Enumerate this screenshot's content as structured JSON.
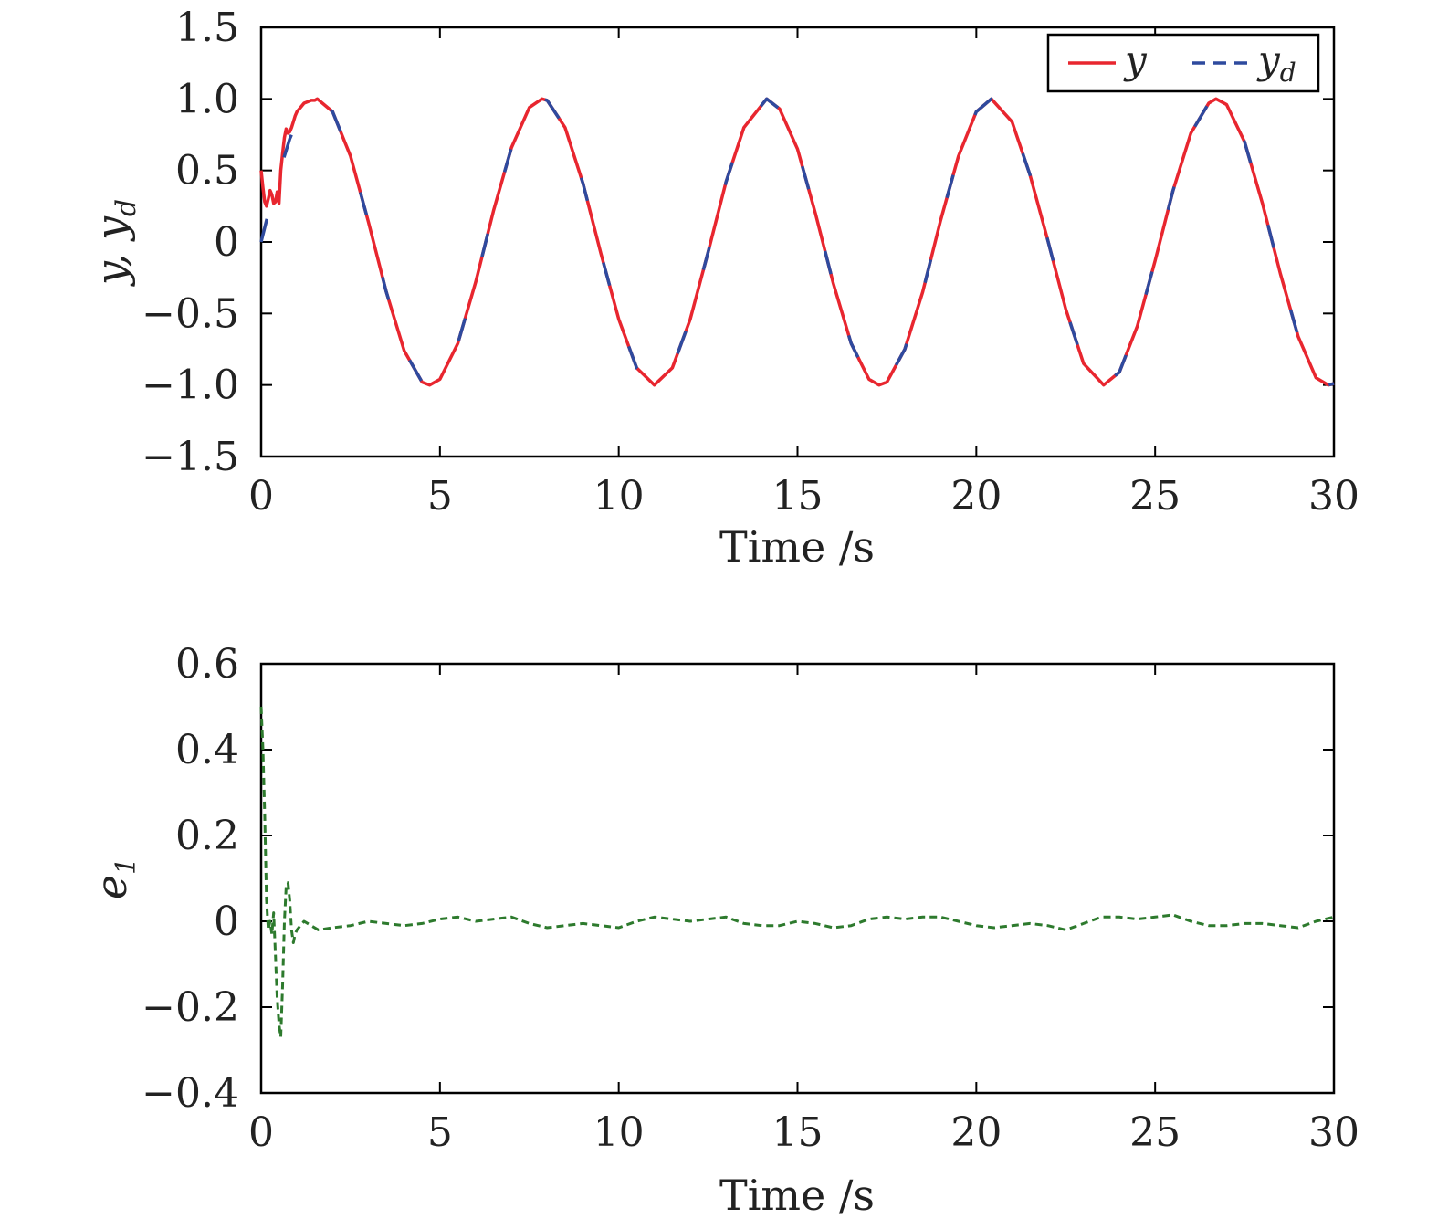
{
  "chart_data": [
    {
      "type": "line",
      "xlabel": "Time /s",
      "ylabel": {
        "main": "y, y",
        "sub": "d"
      },
      "xlim": [
        0,
        30
      ],
      "ylim": [
        -1.5,
        1.5
      ],
      "xticks": [
        "0",
        "5",
        "10",
        "15",
        "20",
        "25",
        "30"
      ],
      "yticks": [
        "1.5",
        "1.0",
        "0.5",
        "0",
        "−0.5",
        "−1.0",
        "−1.5"
      ],
      "grid": false,
      "legend_position": "top-right",
      "series": [
        {
          "name": "y",
          "color": "#e8262f",
          "style": "solid",
          "x": [
            0.0,
            0.05,
            0.1,
            0.15,
            0.2,
            0.25,
            0.3,
            0.35,
            0.4,
            0.45,
            0.5,
            0.55,
            0.6,
            0.65,
            0.7,
            0.75,
            0.8,
            0.85,
            0.9,
            0.95,
            1.0,
            1.1,
            1.2,
            1.3,
            1.4,
            1.5,
            1.571,
            2.0,
            2.5,
            3.0,
            3.5,
            4.0,
            4.5,
            4.712,
            5.0,
            5.5,
            6.0,
            6.5,
            7.0,
            7.5,
            7.854,
            8.0,
            8.5,
            9.0,
            9.5,
            10.0,
            10.5,
            10.996,
            11.5,
            12.0,
            12.5,
            13.0,
            13.5,
            14.137,
            14.5,
            15.0,
            15.5,
            16.0,
            16.5,
            17.0,
            17.279,
            17.5,
            18.0,
            18.5,
            19.0,
            19.5,
            20.0,
            20.42,
            21.0,
            21.5,
            22.0,
            22.5,
            23.0,
            23.562,
            24.0,
            24.5,
            25.0,
            25.5,
            26.0,
            26.5,
            26.704,
            27.0,
            27.5,
            28.0,
            28.5,
            29.0,
            29.5,
            29.845,
            30.0
          ],
          "y": [
            0.5,
            0.38,
            0.28,
            0.25,
            0.3,
            0.36,
            0.33,
            0.27,
            0.28,
            0.35,
            0.27,
            0.5,
            0.62,
            0.73,
            0.79,
            0.76,
            0.77,
            0.8,
            0.84,
            0.88,
            0.91,
            0.94,
            0.97,
            0.98,
            0.99,
            0.99,
            1.0,
            0.91,
            0.6,
            0.14,
            -0.35,
            -0.76,
            -0.98,
            -1.0,
            -0.96,
            -0.71,
            -0.28,
            0.22,
            0.66,
            0.94,
            1.0,
            0.99,
            0.8,
            0.41,
            -0.08,
            -0.54,
            -0.88,
            -1.0,
            -0.88,
            -0.54,
            -0.07,
            0.42,
            0.8,
            1.0,
            0.93,
            0.65,
            0.2,
            -0.29,
            -0.71,
            -0.96,
            -1.0,
            -0.98,
            -0.75,
            -0.35,
            0.15,
            0.6,
            0.91,
            1.0,
            0.84,
            0.47,
            0.01,
            -0.47,
            -0.85,
            -1.0,
            -0.91,
            -0.59,
            -0.13,
            0.36,
            0.76,
            0.97,
            1.0,
            0.96,
            0.7,
            0.27,
            -0.22,
            -0.66,
            -0.95,
            -1.0,
            -0.99
          ]
        },
        {
          "name": "y",
          "name_sub": "d",
          "color": "#2e4a9e",
          "style": "dashed",
          "x": [
            0.0,
            0.2,
            0.4,
            0.6,
            0.8,
            1.0,
            1.2,
            1.4,
            1.571,
            2.0,
            2.5,
            3.0,
            3.5,
            4.0,
            4.5,
            4.712,
            5.0,
            5.5,
            6.0,
            6.5,
            7.0,
            7.5,
            7.854,
            8.0,
            8.5,
            9.0,
            9.5,
            10.0,
            10.5,
            10.996,
            11.5,
            12.0,
            12.5,
            13.0,
            13.5,
            14.137,
            14.5,
            15.0,
            15.5,
            16.0,
            16.5,
            17.0,
            17.279,
            17.5,
            18.0,
            18.5,
            19.0,
            19.5,
            20.0,
            20.42,
            21.0,
            21.5,
            22.0,
            22.5,
            23.0,
            23.562,
            24.0,
            24.5,
            25.0,
            25.5,
            26.0,
            26.5,
            26.704,
            27.0,
            27.5,
            28.0,
            28.5,
            29.0,
            29.5,
            29.845,
            30.0
          ],
          "y": [
            0.0,
            0.2,
            0.39,
            0.56,
            0.72,
            0.84,
            0.93,
            0.99,
            1.0,
            0.91,
            0.6,
            0.14,
            -0.35,
            -0.76,
            -0.98,
            -1.0,
            -0.96,
            -0.71,
            -0.28,
            0.22,
            0.66,
            0.94,
            1.0,
            0.99,
            0.8,
            0.41,
            -0.08,
            -0.54,
            -0.88,
            -1.0,
            -0.88,
            -0.54,
            -0.07,
            0.42,
            0.8,
            1.0,
            0.93,
            0.65,
            0.2,
            -0.29,
            -0.71,
            -0.96,
            -1.0,
            -0.98,
            -0.75,
            -0.35,
            0.15,
            0.6,
            0.91,
            1.0,
            0.84,
            0.47,
            0.01,
            -0.47,
            -0.85,
            -1.0,
            -0.91,
            -0.59,
            -0.13,
            0.36,
            0.76,
            0.97,
            1.0,
            0.96,
            0.7,
            0.27,
            -0.22,
            -0.66,
            -0.95,
            -1.0,
            -0.99
          ]
        }
      ]
    },
    {
      "type": "line",
      "xlabel": "Time /s",
      "ylabel": {
        "main": "e",
        "sub": "1"
      },
      "xlim": [
        0,
        30
      ],
      "ylim": [
        -0.4,
        0.6
      ],
      "xticks": [
        "0",
        "5",
        "10",
        "15",
        "20",
        "25",
        "30"
      ],
      "yticks": [
        "0.6",
        "0.4",
        "0.2",
        "0",
        "−0.2",
        "−0.4"
      ],
      "grid": false,
      "series": [
        {
          "color": "#2d7a2d",
          "style": "dotted",
          "x": [
            0.0,
            0.05,
            0.1,
            0.15,
            0.2,
            0.25,
            0.3,
            0.35,
            0.4,
            0.45,
            0.5,
            0.55,
            0.6,
            0.65,
            0.7,
            0.75,
            0.8,
            0.85,
            0.9,
            0.95,
            1.0,
            1.1,
            1.2,
            1.4,
            1.6,
            2.0,
            2.5,
            3.0,
            3.5,
            4.0,
            4.5,
            5.0,
            5.5,
            6.0,
            6.5,
            7.0,
            7.5,
            8.0,
            8.5,
            9.0,
            9.5,
            10.0,
            10.5,
            11.0,
            11.5,
            12.0,
            12.5,
            13.0,
            13.5,
            14.0,
            14.5,
            15.0,
            15.5,
            16.0,
            16.5,
            17.0,
            17.5,
            18.0,
            18.5,
            19.0,
            19.5,
            20.0,
            20.5,
            21.0,
            21.5,
            22.0,
            22.5,
            23.0,
            23.5,
            24.0,
            24.5,
            25.0,
            25.5,
            26.0,
            26.5,
            27.0,
            27.5,
            28.0,
            28.5,
            29.0,
            29.5,
            30.0
          ],
          "y": [
            0.5,
            0.4,
            0.25,
            0.05,
            -0.02,
            0.0,
            -0.03,
            0.02,
            -0.08,
            -0.18,
            -0.24,
            -0.27,
            -0.15,
            0.0,
            0.08,
            0.09,
            0.05,
            -0.02,
            -0.05,
            -0.03,
            -0.02,
            -0.01,
            0.0,
            -0.01,
            -0.02,
            -0.015,
            -0.01,
            0.0,
            -0.005,
            -0.01,
            -0.005,
            0.005,
            0.01,
            0.0,
            0.005,
            0.01,
            -0.005,
            -0.015,
            -0.01,
            -0.005,
            -0.01,
            -0.015,
            0.0,
            0.01,
            0.005,
            0.0,
            0.005,
            0.01,
            -0.005,
            -0.01,
            -0.01,
            0.0,
            -0.005,
            -0.015,
            -0.01,
            0.005,
            0.01,
            0.005,
            0.01,
            0.01,
            0.0,
            -0.01,
            -0.015,
            -0.01,
            -0.005,
            -0.01,
            -0.02,
            -0.005,
            0.01,
            0.01,
            0.005,
            0.01,
            0.015,
            0.0,
            -0.01,
            -0.01,
            -0.005,
            -0.005,
            -0.01,
            -0.015,
            0.0,
            0.01
          ]
        }
      ]
    }
  ]
}
